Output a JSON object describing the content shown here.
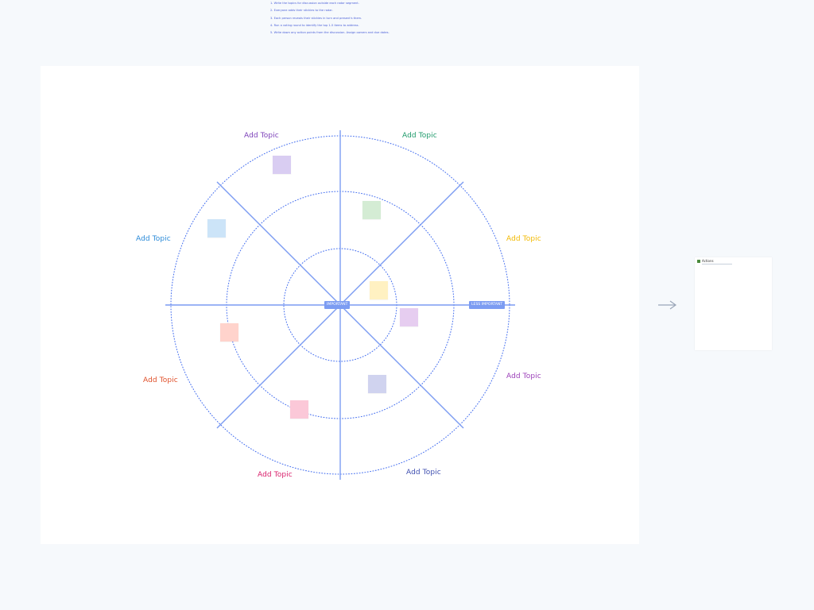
{
  "instructions": {
    "steps": [
      "1. Write the topics for discussion outside each radar segment.",
      "2. Everyone adds their stickies to the radar.",
      "3. Each person reveals their stickies in turn and present's them.",
      "4. Run a voting round to identify the top 1-5 items to address.",
      "5. Write down any action points from the discussion. Assign owners and due dates."
    ]
  },
  "radar": {
    "axis_labels": {
      "center": "IMPORTANT",
      "right": "LESS IMPORTANT"
    },
    "topics": [
      {
        "label": "Add Topic",
        "color": "#7b3fb8"
      },
      {
        "label": "Add Topic",
        "color": "#1e9a6a"
      },
      {
        "label": "Add Topic",
        "color": "#f2b900"
      },
      {
        "label": "Add Topic",
        "color": "#9b3fb8"
      },
      {
        "label": "Add Topic",
        "color": "#3f4fb0"
      },
      {
        "label": "Add Topic",
        "color": "#d81e6a"
      },
      {
        "label": "Add Topic",
        "color": "#e0502a"
      },
      {
        "label": "Add Topic",
        "color": "#2a8ad8"
      }
    ],
    "stickies": [
      {
        "color": "#d9cdf2"
      },
      {
        "color": "#d4ecd4"
      },
      {
        "color": "#fff1c2"
      },
      {
        "color": "#e6cdf0"
      },
      {
        "color": "#d0d3ef"
      },
      {
        "color": "#fbc8d8"
      },
      {
        "color": "#ffd3cc"
      },
      {
        "color": "#cce4f8"
      }
    ]
  },
  "actions_frame": {
    "title": "Actions",
    "icon": "clapperboard-icon"
  },
  "colors": {
    "axis": "#7c9cf2",
    "ring": "#4a73f0",
    "background": "#f6f9fc",
    "board": "#ffffff"
  }
}
